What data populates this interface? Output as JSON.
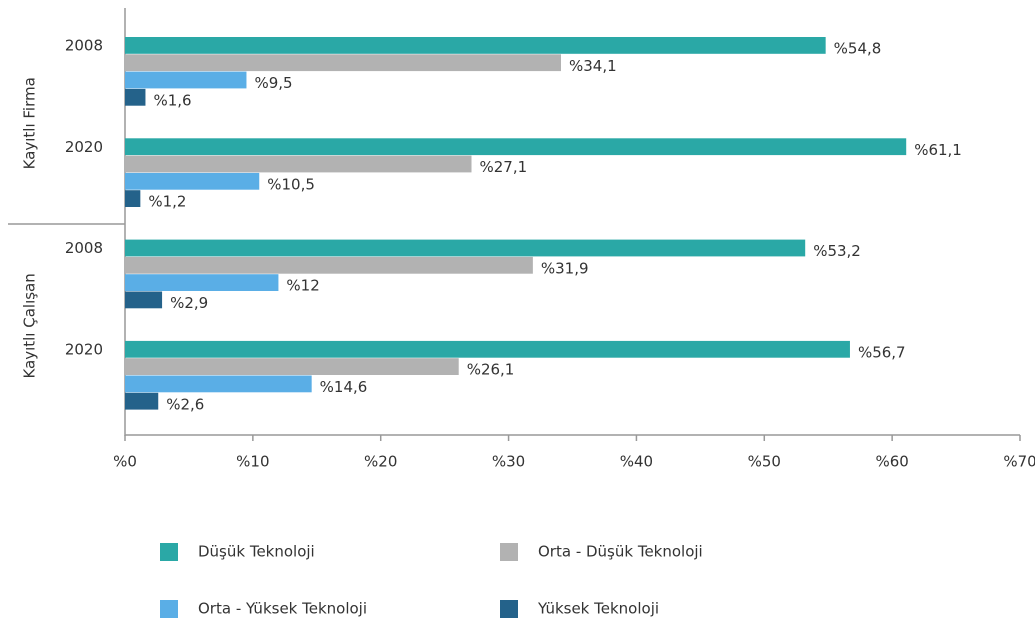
{
  "chart_data": {
    "type": "hbar",
    "groups": [
      "Kayıtlı Firma",
      "Kayıtlı Çalışan"
    ],
    "categories": [
      "2008",
      "2020",
      "2008",
      "2020"
    ],
    "series": [
      {
        "name": "Düşük Teknoloji",
        "color": "#2aa8a6",
        "values": [
          54.8,
          61.1,
          53.2,
          56.7
        ],
        "value_labels": [
          "%54,8",
          "%61,1",
          "%53,2",
          "%56,7"
        ]
      },
      {
        "name": "Orta - Düşük Teknoloji",
        "color": "#b2b2b2",
        "values": [
          34.1,
          27.1,
          31.9,
          26.1
        ],
        "value_labels": [
          "%34,1",
          "%27,1",
          "%31,9",
          "%26,1"
        ]
      },
      {
        "name": "Orta - Yüksek Teknoloji",
        "color": "#5aaee6",
        "values": [
          9.5,
          10.5,
          12,
          14.6
        ],
        "value_labels": [
          "%9,5",
          "%10,5",
          "%12",
          "%14,6"
        ]
      },
      {
        "name": "Yüksek Teknoloji",
        "color": "#24628a",
        "values": [
          1.6,
          1.2,
          2.9,
          2.6
        ],
        "value_labels": [
          "%1,6",
          "%1,2",
          "%2,9",
          "%2,6"
        ]
      }
    ],
    "xlim": [
      0,
      70
    ],
    "xticks": [
      {
        "value": 0,
        "label": "%0"
      },
      {
        "value": 10,
        "label": "%10"
      },
      {
        "value": 20,
        "label": "%20"
      },
      {
        "value": 30,
        "label": "%30"
      },
      {
        "value": 40,
        "label": "%40"
      },
      {
        "value": 50,
        "label": "%50"
      },
      {
        "value": 60,
        "label": "%60"
      },
      {
        "value": 70,
        "label": "%70"
      }
    ],
    "grid": false
  }
}
